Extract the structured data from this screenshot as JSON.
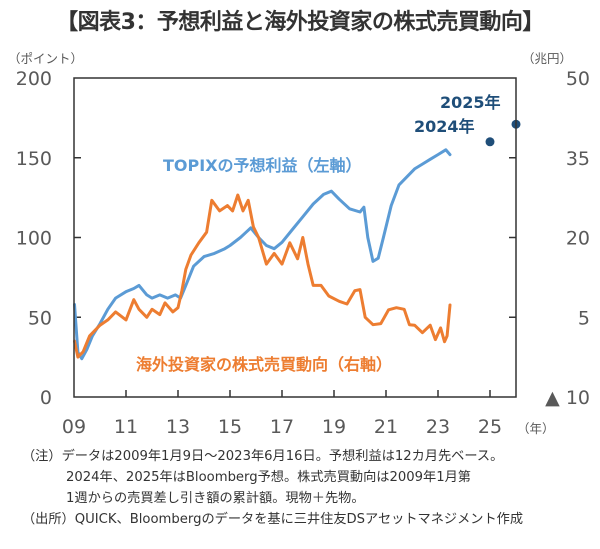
{
  "title": "【図表3：予想利益と海外投資家の株式売買動向】",
  "notes": {
    "note_prefix": "（注）",
    "note_line1": "データは2009年1月9日～2023年6月16日。予想利益は12カ月先ベース。",
    "note_line2": "2024年、2025年はBloomberg予想。株式売買動向は2009年1月第",
    "note_line3": "1週からの売買差し引き額の累計額。現物＋先物。",
    "source": "（出所）QUICK、Bloombergのデータを基に三井住友DSアセットマネジメント作成"
  },
  "colors": {
    "topix": "#5B9BD5",
    "foreign": "#ED7D31",
    "forecast": "#1F4E79",
    "axis": "#333333",
    "tick_text": "#595959"
  },
  "chart_data": {
    "type": "line",
    "title": "【図表3：予想利益と海外投資家の株式売買動向】",
    "xlabel": "（年）",
    "ylabel_left": "（ポイント）",
    "ylabel_right": "（兆円）",
    "xlim": [
      2009,
      2026
    ],
    "ylim_left": [
      0,
      200
    ],
    "ylim_right": [
      -10,
      50
    ],
    "x_ticks": [
      2009,
      2011,
      2013,
      2015,
      2017,
      2019,
      2021,
      2023,
      2025
    ],
    "x_tick_labels": [
      "09",
      "11",
      "13",
      "15",
      "17",
      "19",
      "21",
      "23",
      "25"
    ],
    "y_left_ticks": [
      0,
      50,
      100,
      150,
      200
    ],
    "y_left_tick_labels": [
      "0",
      "50",
      "100",
      "150",
      "200"
    ],
    "y_right_ticks": [
      -10,
      5,
      20,
      35,
      50
    ],
    "y_right_tick_labels": [
      "▲ 10",
      "5",
      "20",
      "35",
      "50"
    ],
    "grid": false,
    "series": [
      {
        "name": "TOPIXの予想利益（左軸）",
        "axis": "left",
        "x": [
          2009.02,
          2009.15,
          2009.3,
          2009.5,
          2009.7,
          2010.0,
          2010.3,
          2010.6,
          2011.0,
          2011.3,
          2011.5,
          2011.8,
          2012.0,
          2012.3,
          2012.6,
          2012.9,
          2013.1,
          2013.3,
          2013.6,
          2014.0,
          2014.4,
          2014.8,
          2015.0,
          2015.4,
          2015.6,
          2015.8,
          2016.1,
          2016.4,
          2016.7,
          2017.0,
          2017.4,
          2017.8,
          2018.2,
          2018.6,
          2018.9,
          2019.2,
          2019.6,
          2020.0,
          2020.15,
          2020.3,
          2020.5,
          2020.7,
          2020.9,
          2021.2,
          2021.5,
          2021.8,
          2022.1,
          2022.4,
          2022.7,
          2023.0,
          2023.3,
          2023.46
        ],
        "values": [
          58,
          28,
          24,
          30,
          38,
          46,
          55,
          62,
          66,
          68,
          70,
          64,
          62,
          64,
          62,
          64,
          62,
          70,
          82,
          88,
          90,
          93,
          95,
          100,
          103,
          106,
          100,
          95,
          93,
          97,
          105,
          113,
          121,
          127,
          129,
          124,
          118,
          116,
          119,
          100,
          85,
          87,
          100,
          120,
          133,
          138,
          143,
          146,
          149,
          152,
          155,
          152
        ]
      },
      {
        "name": "海外投資家の株式売買動向（右軸）",
        "axis": "right",
        "x": [
          2009.02,
          2009.15,
          2009.35,
          2009.6,
          2010.0,
          2010.3,
          2010.6,
          2011.0,
          2011.3,
          2011.5,
          2011.8,
          2012.0,
          2012.3,
          2012.5,
          2012.8,
          2013.0,
          2013.15,
          2013.3,
          2013.5,
          2013.8,
          2014.1,
          2014.3,
          2014.6,
          2014.9,
          2015.1,
          2015.3,
          2015.5,
          2015.7,
          2015.9,
          2016.1,
          2016.4,
          2016.7,
          2017.0,
          2017.3,
          2017.6,
          2017.8,
          2018.0,
          2018.2,
          2018.5,
          2018.8,
          2019.2,
          2019.5,
          2019.8,
          2020.0,
          2020.2,
          2020.5,
          2020.8,
          2021.1,
          2021.4,
          2021.7,
          2021.9,
          2022.1,
          2022.4,
          2022.7,
          2022.9,
          2023.1,
          2023.25,
          2023.35,
          2023.46
        ],
        "values": [
          0.5,
          -2.5,
          -1.5,
          1.5,
          3.5,
          4.5,
          6,
          4.5,
          8.3,
          6.5,
          5,
          6.5,
          5.5,
          7.7,
          6,
          6.8,
          10,
          14,
          16.7,
          19,
          21,
          27,
          25,
          26,
          25,
          28,
          25,
          27,
          22,
          20,
          15,
          17,
          15,
          19,
          16,
          20,
          15,
          11,
          11,
          9,
          8,
          7.5,
          10,
          10.2,
          5,
          3.6,
          3.8,
          6.4,
          6.8,
          6.5,
          3.6,
          3.5,
          2.1,
          3.5,
          0.8,
          3.0,
          0.4,
          1.5,
          7.3
        ]
      },
      {
        "name": "Bloomberg予想",
        "axis": "left",
        "type": "scatter",
        "x": [
          2025.0,
          2026.0
        ],
        "values": [
          160,
          171
        ],
        "labels": [
          "2024年",
          "2025年"
        ]
      }
    ],
    "annotations": [
      {
        "text": "TOPIXの予想利益（左軸）",
        "series": "TOPIXの予想利益（左軸）"
      },
      {
        "text": "海外投資家の株式売買動向（右軸）",
        "series": "海外投資家の株式売買動向（右軸）"
      },
      {
        "text": "2024年"
      },
      {
        "text": "2025年"
      }
    ]
  }
}
